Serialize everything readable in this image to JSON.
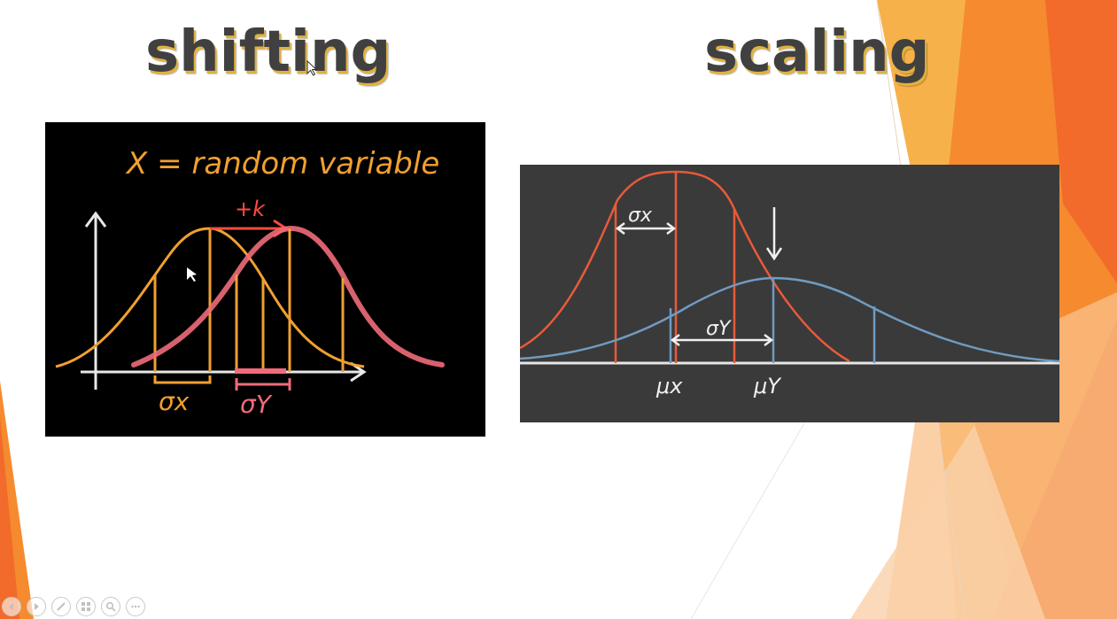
{
  "slide": {
    "title_left": "shifting",
    "title_right": "scaling"
  },
  "shifting_panel": {
    "heading": "X = random variable",
    "shift_label": "+k",
    "sigma_x_label": "σx",
    "sigma_y_label": "σY"
  },
  "scaling_panel": {
    "sigma_x_label": "σx",
    "sigma_y_label": "σY",
    "mu_x_label": "μx",
    "mu_y_label": "μY"
  },
  "colors": {
    "accent_orange": "#f0a030",
    "pink": "#f06b7a",
    "red_curve": "#e85a3a",
    "blue_curve": "#6f9cc2",
    "deco_orange": "#f26b2a",
    "deco_light": "#f7b14a",
    "title_shadow": "#e0b13c"
  },
  "toolbar": {
    "icons": [
      "back-icon",
      "forward-icon",
      "pen-icon",
      "slides-icon",
      "zoom-icon",
      "more-icon"
    ]
  }
}
